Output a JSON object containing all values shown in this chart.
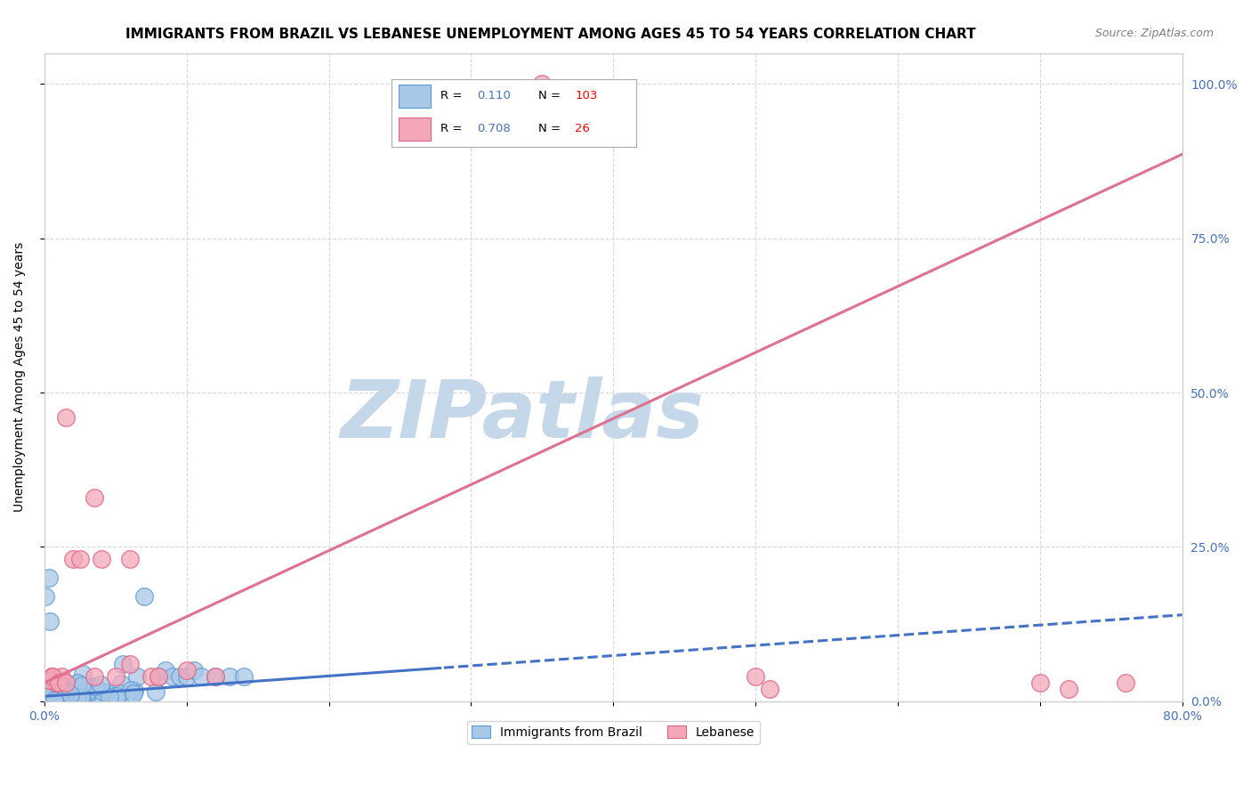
{
  "title": "IMMIGRANTS FROM BRAZIL VS LEBANESE UNEMPLOYMENT AMONG AGES 45 TO 54 YEARS CORRELATION CHART",
  "source": "Source: ZipAtlas.com",
  "ylabel": "Unemployment Among Ages 45 to 54 years",
  "xlim": [
    0.0,
    0.8
  ],
  "ylim": [
    0.0,
    1.05
  ],
  "xtick_positions": [
    0.0,
    0.1,
    0.2,
    0.3,
    0.4,
    0.5,
    0.6,
    0.7,
    0.8
  ],
  "xticklabels": [
    "0.0%",
    "",
    "",
    "",
    "",
    "",
    "",
    "",
    "80.0%"
  ],
  "ytick_positions": [
    0.0,
    0.25,
    0.5,
    0.75,
    1.0
  ],
  "yticklabels_right": [
    "0.0%",
    "25.0%",
    "50.0%",
    "75.0%",
    "100.0%"
  ],
  "watermark": "ZIPatlas",
  "blue_scatter_color": "#A8C8E8",
  "blue_edge_color": "#5B9BD5",
  "pink_scatter_color": "#F4A7B9",
  "pink_edge_color": "#E06080",
  "blue_line_color": "#4472C4",
  "pink_line_color": "#E07090",
  "legend_r_blue": "0.110",
  "legend_n_blue": "103",
  "legend_r_pink": "0.708",
  "legend_n_pink": "26",
  "legend_label_blue": "Immigrants from Brazil",
  "legend_label_pink": "Lebanese",
  "background_color": "#ffffff",
  "grid_color": "#d8d8d8",
  "title_fontsize": 11,
  "axis_fontsize": 10,
  "watermark_color": "#C5D8EA",
  "watermark_fontsize": 65,
  "blue_line_intercept": 0.008,
  "blue_line_slope": 0.165,
  "pink_line_intercept": 0.03,
  "pink_line_slope": 1.07
}
